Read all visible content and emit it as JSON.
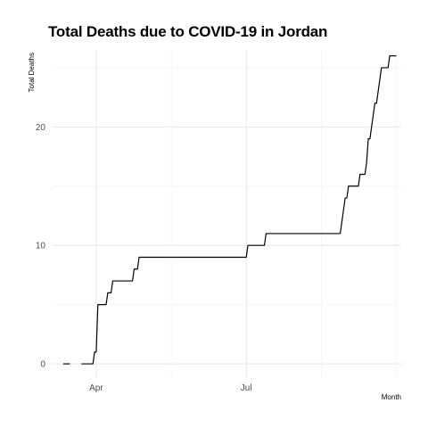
{
  "chart_data": {
    "type": "line",
    "title": "Total Deaths due to COVID-19 in Jordan",
    "xlabel": "Month",
    "ylabel": "Total Deaths",
    "grid": true,
    "legend": "none",
    "x_ticks": [
      {
        "label": "Apr",
        "date": "2020-04-01"
      },
      {
        "label": "Jul",
        "date": "2020-07-01"
      }
    ],
    "y_ticks": [
      {
        "label": "0",
        "value": 0
      },
      {
        "label": "10",
        "value": 10
      },
      {
        "label": "20",
        "value": 20
      }
    ],
    "xlim": [
      "2020-03-05",
      "2020-10-03"
    ],
    "ylim": [
      -1.2,
      26.5
    ],
    "series": [
      {
        "color": "#000000",
        "segments": [
          {
            "x": [
              "2020-03-12",
              "2020-03-16"
            ],
            "y": [
              0,
              0
            ]
          },
          {
            "x": [
              "2020-03-23",
              "2020-03-24",
              "2020-03-25",
              "2020-03-26",
              "2020-03-27",
              "2020-03-28",
              "2020-03-29",
              "2020-03-30",
              "2020-03-31",
              "2020-04-01",
              "2020-04-02",
              "2020-04-03",
              "2020-04-04",
              "2020-04-05",
              "2020-04-06",
              "2020-04-07",
              "2020-04-08",
              "2020-04-09",
              "2020-04-10",
              "2020-04-11",
              "2020-04-12",
              "2020-04-13",
              "2020-04-14",
              "2020-04-15",
              "2020-04-16",
              "2020-04-17",
              "2020-04-18",
              "2020-04-19",
              "2020-04-20",
              "2020-04-21",
              "2020-04-22",
              "2020-04-23",
              "2020-04-24",
              "2020-04-25",
              "2020-04-26",
              "2020-04-27",
              "2020-04-28",
              "2020-04-29",
              "2020-04-30",
              "2020-05-01",
              "2020-05-02",
              "2020-05-03",
              "2020-06-30",
              "2020-07-01",
              "2020-07-02",
              "2020-07-03",
              "2020-07-04",
              "2020-07-05",
              "2020-07-06",
              "2020-07-07",
              "2020-07-08",
              "2020-07-09",
              "2020-07-10",
              "2020-07-11",
              "2020-07-12",
              "2020-07-13",
              "2020-07-14",
              "2020-07-15",
              "2020-07-16",
              "2020-07-17",
              "2020-08-27",
              "2020-08-28",
              "2020-08-29",
              "2020-08-30",
              "2020-08-31",
              "2020-09-01",
              "2020-09-02",
              "2020-09-03",
              "2020-09-04",
              "2020-09-05",
              "2020-09-06",
              "2020-09-07",
              "2020-09-08",
              "2020-09-09",
              "2020-09-10",
              "2020-09-11",
              "2020-09-12",
              "2020-09-13",
              "2020-09-14",
              "2020-09-15",
              "2020-09-16",
              "2020-09-17",
              "2020-09-18",
              "2020-09-19",
              "2020-09-20",
              "2020-09-21",
              "2020-09-22",
              "2020-09-23",
              "2020-09-24",
              "2020-09-25",
              "2020-09-26",
              "2020-09-27",
              "2020-09-28",
              "2020-09-29",
              "2020-09-30"
            ],
            "y": [
              0,
              0,
              0,
              0,
              0,
              0,
              0,
              0,
              1,
              1,
              5,
              5,
              5,
              5,
              5,
              5,
              6,
              6,
              6,
              7,
              7,
              7,
              7,
              7,
              7,
              7,
              7,
              7,
              7,
              7,
              7,
              7,
              8,
              8,
              8,
              9,
              9,
              9,
              9,
              9,
              9,
              9,
              9,
              9,
              10,
              10,
              10,
              10,
              10,
              10,
              10,
              10,
              10,
              10,
              10,
              11,
              11,
              11,
              11,
              11,
              11,
              12,
              13,
              14,
              14,
              15,
              15,
              15,
              15,
              15,
              15,
              15,
              16,
              16,
              16,
              16,
              17,
              19,
              19,
              20,
              21,
              22,
              22,
              23,
              24,
              25,
              25,
              25,
              25,
              25,
              26,
              26,
              26,
              26,
              26
            ]
          }
        ]
      }
    ]
  }
}
